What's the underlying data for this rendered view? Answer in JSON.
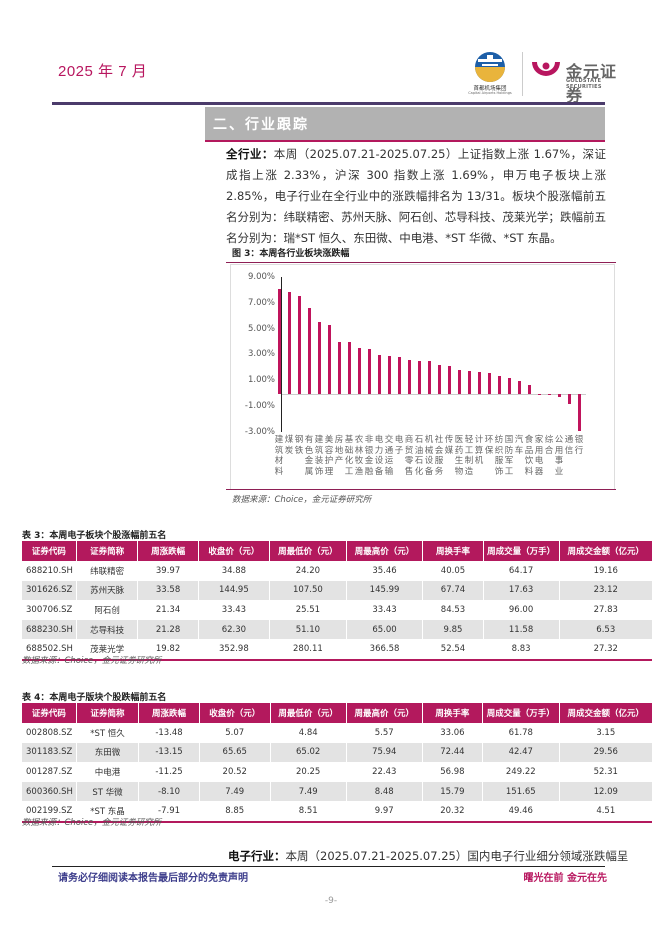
{
  "header": {
    "date": "2025 年 7 月",
    "logo_capital": {
      "cn": "首都机场集团",
      "en": "Capital Airports Holdings"
    },
    "logo_goldstate": {
      "cn": "金元证券",
      "en": "GOLDSTATE SECURITIES"
    }
  },
  "section": {
    "title": "二、行业跟踪"
  },
  "intro": {
    "lead": "全行业：",
    "text": "本周（2025.07.21-2025.07.25）上证指数上涨 1.67%，深证成指上涨 2.33%，沪深 300 指数上涨 1.69%，申万电子板块上涨 2.85%，电子行业在全行业中的涨跌幅排名为 13/31。板块个股涨幅前五名分别为：纬联精密、苏州天脉、阿石创、芯导科技、茂莱光学；跌幅前五名分别为：瑞*ST 恒久、东田微、中电港、*ST 华微、*ST 东晶。"
  },
  "figure3": {
    "title": "图 3：本周各行业板块涨跌幅",
    "source": "数据来源：Choice，金元证券研究所"
  },
  "chart_data": {
    "type": "bar",
    "title": "图 3：本周各行业板块涨跌幅",
    "xlabel": "",
    "ylabel": "",
    "ylim": [
      -3.0,
      9.0
    ],
    "yticks": [
      "9.00%",
      "7.00%",
      "5.00%",
      "3.00%",
      "1.00%",
      "-1.00%",
      "-3.00%"
    ],
    "grid": false,
    "legend": null,
    "color": "#c0145c",
    "categories": [
      "建筑材料",
      "煤炭",
      "钢铁",
      "有色金属",
      "建筑装饰",
      "美容护理",
      "房地产",
      "基础化工",
      "农林牧渔",
      "非银金融",
      "电力设备",
      "交通运输",
      "电子",
      "商贸零售",
      "石油石化",
      "机械设备",
      "社会服务",
      "传媒",
      "医药生物",
      "轻工制造",
      "计算机",
      "环保",
      "纺织服饰",
      "国防军工",
      "汽车",
      "食品饮料",
      "家用电器",
      "综合",
      "公用事业",
      "通信",
      "银行"
    ],
    "values": [
      8.14,
      7.93,
      7.62,
      6.67,
      5.6,
      5.37,
      4.03,
      4.0,
      3.59,
      3.48,
      3.02,
      2.92,
      2.85,
      2.62,
      2.57,
      2.54,
      2.28,
      2.15,
      1.87,
      1.82,
      1.69,
      1.64,
      1.43,
      1.27,
      0.98,
      0.72,
      0.02,
      0.01,
      -0.22,
      -0.75,
      -2.85
    ]
  },
  "table3": {
    "title": "表 3：本周电子板块个股涨幅前五名",
    "columns": [
      "证券代码",
      "证券简称",
      "周涨跌幅",
      "收盘价（元）",
      "周最低价（元）",
      "周最高价（元）",
      "周换手率",
      "周成交量（万手）",
      "周成交金额（亿元）"
    ],
    "rows": [
      [
        "688210.SH",
        "纬联精密",
        "39.97",
        "34.88",
        "24.20",
        "35.46",
        "40.05",
        "64.17",
        "19.16"
      ],
      [
        "301626.SZ",
        "苏州天脉",
        "33.58",
        "144.95",
        "107.50",
        "145.99",
        "67.74",
        "17.63",
        "23.12"
      ],
      [
        "300706.SZ",
        "阿石创",
        "21.34",
        "33.43",
        "25.51",
        "33.43",
        "84.53",
        "96.00",
        "27.83"
      ],
      [
        "688230.SH",
        "芯导科技",
        "21.28",
        "62.30",
        "51.10",
        "65.00",
        "9.85",
        "11.58",
        "6.53"
      ],
      [
        "688502.SH",
        "茂莱光学",
        "19.82",
        "352.98",
        "280.11",
        "366.58",
        "52.54",
        "8.83",
        "27.32"
      ]
    ],
    "source": "数据来源：Choice，金元证券研究所"
  },
  "table4": {
    "title": "表 4：本周电子版块个股跌幅前五名",
    "columns": [
      "证券代码",
      "证券简称",
      "周涨跌幅",
      "收盘价（元）",
      "周最低价（元）",
      "周最高价（元）",
      "周换手率",
      "周成交量（万手）",
      "周成交金额（亿元）"
    ],
    "rows": [
      [
        "002808.SZ",
        "*ST 恒久",
        "-13.48",
        "5.07",
        "4.84",
        "5.57",
        "33.06",
        "61.78",
        "3.15"
      ],
      [
        "301183.SZ",
        "东田微",
        "-13.15",
        "65.65",
        "65.02",
        "75.94",
        "72.44",
        "42.47",
        "29.56"
      ],
      [
        "001287.SZ",
        "中电港",
        "-11.25",
        "20.52",
        "20.25",
        "22.43",
        "56.98",
        "249.22",
        "52.31"
      ],
      [
        "600360.SH",
        "ST 华微",
        "-8.10",
        "7.49",
        "7.49",
        "8.48",
        "15.79",
        "151.65",
        "12.09"
      ],
      [
        "002199.SZ",
        "*ST 东晶",
        "-7.91",
        "8.85",
        "8.51",
        "9.97",
        "20.32",
        "49.46",
        "4.51"
      ]
    ],
    "source": "数据来源：Choice，金元证券研究所"
  },
  "electronics": {
    "lead": "电子行业：",
    "text": "本周（2025.07.21-2025.07.25）国内电子行业细分领域涨跌幅呈"
  },
  "footer": {
    "disclaimer": "请务必仔细阅读本报告最后部分的免责声明",
    "slogan": "曙光在前 金元在先",
    "page": "-9-"
  }
}
